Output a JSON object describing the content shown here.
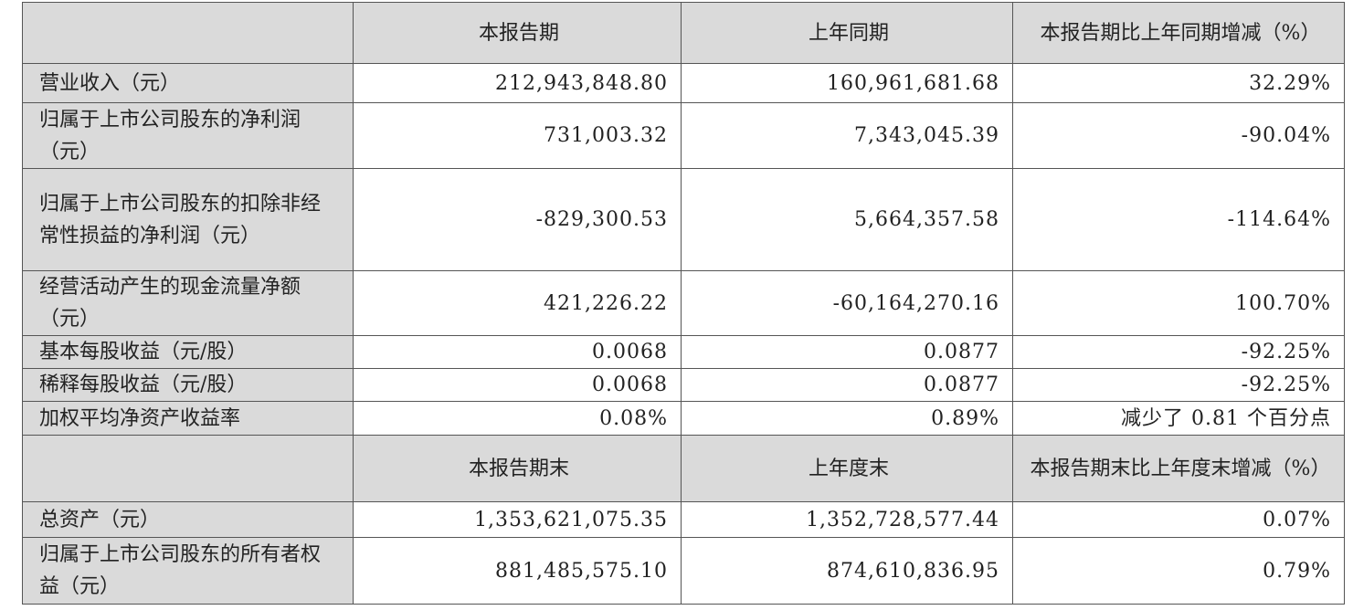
{
  "header1": [
    "",
    "本报告期",
    "上年同期",
    "本报告期比上年同期增减（%）"
  ],
  "rows1": [
    {
      "label": "营业收入（元）",
      "current": "212,943,848.80",
      "prior": "160,961,681.68",
      "change": "32.29%"
    },
    {
      "label": "归属于上市公司股东的净利润（元）",
      "current": "731,003.32",
      "prior": "7,343,045.39",
      "change": "-90.04%"
    },
    {
      "label": "归属于上市公司股东的扣除非经常性损益的净利润（元）",
      "current": "-829,300.53",
      "prior": "5,664,357.58",
      "change": "-114.64%"
    },
    {
      "label": "经营活动产生的现金流量净额（元）",
      "current": "421,226.22",
      "prior": "-60,164,270.16",
      "change": "100.70%"
    },
    {
      "label": "基本每股收益（元/股）",
      "current": "0.0068",
      "prior": "0.0877",
      "change": "-92.25%"
    },
    {
      "label": "稀释每股收益（元/股）",
      "current": "0.0068",
      "prior": "0.0877",
      "change": "-92.25%"
    },
    {
      "label": "加权平均净资产收益率",
      "current": "0.08%",
      "prior": "0.89%",
      "change": "减少了 0.81 个百分点"
    }
  ],
  "header2": [
    "",
    "本报告期末",
    "上年度末",
    "本报告期末比上年度末增减（%）"
  ],
  "rows2": [
    {
      "label": "总资产（元）",
      "current": "1,353,621,075.35",
      "prior": "1,352,728,577.44",
      "change": "0.07%"
    },
    {
      "label": "归属于上市公司股东的所有者权益（元）",
      "current": "881,485,575.10",
      "prior": "874,610,836.95",
      "change": "0.79%"
    }
  ]
}
